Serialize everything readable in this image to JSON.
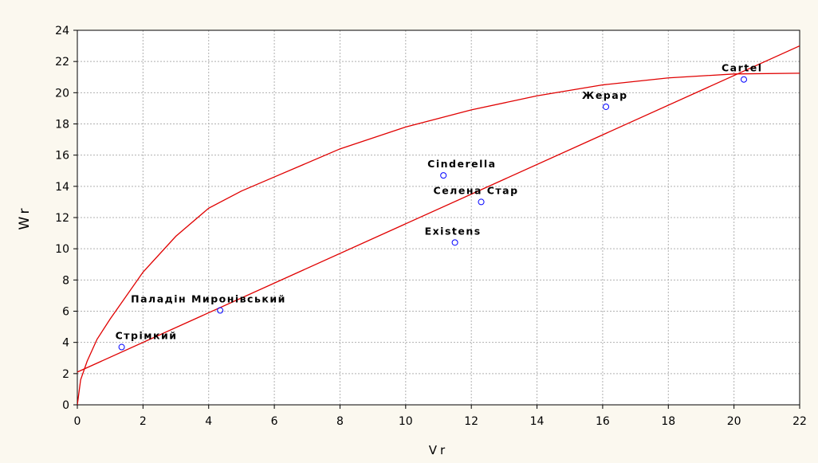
{
  "chart_data": {
    "type": "scatter",
    "xlabel": "Vr",
    "ylabel": "Wr",
    "xlim": [
      0,
      22
    ],
    "ylim": [
      0,
      24
    ],
    "xticks": [
      0,
      2,
      4,
      6,
      8,
      10,
      12,
      14,
      16,
      18,
      20,
      22
    ],
    "yticks": [
      0,
      2,
      4,
      6,
      8,
      10,
      12,
      14,
      16,
      18,
      20,
      22,
      24
    ],
    "grid": true,
    "points": {
      "color": "#0000ff",
      "labels": [
        "Стрімкий",
        "Паладін Миронівський",
        "Cinderella",
        "Селена Стар",
        "Existens",
        "Жерар",
        "Cartel"
      ],
      "x": [
        1.35,
        4.35,
        11.15,
        12.3,
        11.5,
        16.1,
        20.3
      ],
      "values": [
        3.7,
        6.05,
        14.7,
        13.0,
        10.4,
        19.1,
        20.85
      ]
    },
    "lines": [
      {
        "color": "#e00000",
        "x": [
          0,
          22
        ],
        "values": [
          2.1,
          23
        ]
      },
      {
        "color": "#e00000",
        "x": [
          0,
          0.1,
          0.3,
          0.6,
          1,
          2,
          3,
          4,
          5,
          6,
          8,
          10,
          12,
          14,
          16,
          18,
          20,
          22
        ],
        "values": [
          0,
          1.6,
          2.8,
          4.2,
          5.5,
          8.5,
          10.8,
          12.6,
          13.7,
          14.6,
          16.4,
          17.8,
          18.9,
          19.8,
          20.5,
          20.95,
          21.2,
          21.25
        ]
      }
    ]
  }
}
